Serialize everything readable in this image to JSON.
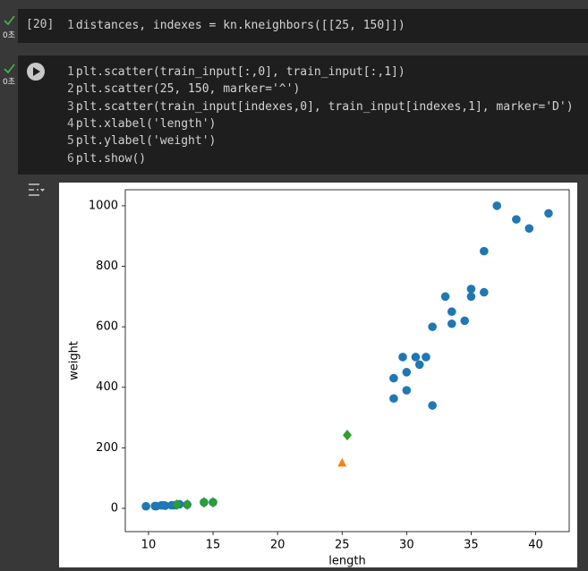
{
  "cells": [
    {
      "exec_label": "[20]",
      "time": "0초",
      "lines": [
        {
          "number": 1,
          "code": "distances, indexes = kn.kneighbors([[25, 150]])"
        }
      ]
    },
    {
      "time": "0초",
      "lines": [
        {
          "number": 1,
          "code": "plt.scatter(train_input[:,0], train_input[:,1])"
        },
        {
          "number": 2,
          "code": "plt.scatter(25, 150, marker='^')"
        },
        {
          "number": 3,
          "code": "plt.scatter(train_input[indexes,0], train_input[indexes,1], marker='D')"
        },
        {
          "number": 4,
          "code": "plt.xlabel('length')"
        },
        {
          "number": 5,
          "code": "plt.ylabel('weight')"
        },
        {
          "number": 6,
          "code": "plt.show()"
        }
      ]
    }
  ],
  "chart_data": {
    "type": "scatter",
    "xlabel": "length",
    "ylabel": "weight",
    "xlim": [
      8.2,
      42.6
    ],
    "ylim": [
      -77,
      1053
    ],
    "xticks": [
      10,
      15,
      20,
      25,
      30,
      35,
      40
    ],
    "yticks": [
      0,
      200,
      400,
      600,
      800,
      1000
    ],
    "series": [
      {
        "color": "#1f77b4",
        "marker": "circle",
        "x": [
          9.8,
          10.5,
          10.6,
          11,
          11.2,
          11.3,
          11.8,
          12,
          12.2,
          12.4,
          13,
          14.3,
          15,
          29,
          29,
          29.7,
          30,
          30,
          30.7,
          31,
          31.5,
          32,
          32,
          33,
          33.5,
          33.5,
          34.5,
          35,
          35,
          36,
          36,
          37,
          38.5,
          39.5,
          41
        ],
        "values": [
          6.7,
          7.5,
          7,
          9.7,
          9.8,
          8.7,
          10,
          9.9,
          12.2,
          13.4,
          12.2,
          19.7,
          19.9,
          363,
          430,
          500,
          450,
          390,
          500,
          475,
          500,
          340,
          600,
          700,
          650,
          610,
          620,
          700,
          725,
          714,
          850,
          1000,
          955,
          925,
          975
        ]
      },
      {
        "color": "#ff7f0e",
        "marker": "triangle",
        "x": [
          25
        ],
        "values": [
          150
        ]
      },
      {
        "color": "#2ca02c",
        "marker": "diamond",
        "x": [
          12.2,
          13,
          14.3,
          15,
          25.4
        ],
        "values": [
          12.2,
          12.2,
          19.7,
          19.9,
          242
        ]
      }
    ]
  }
}
